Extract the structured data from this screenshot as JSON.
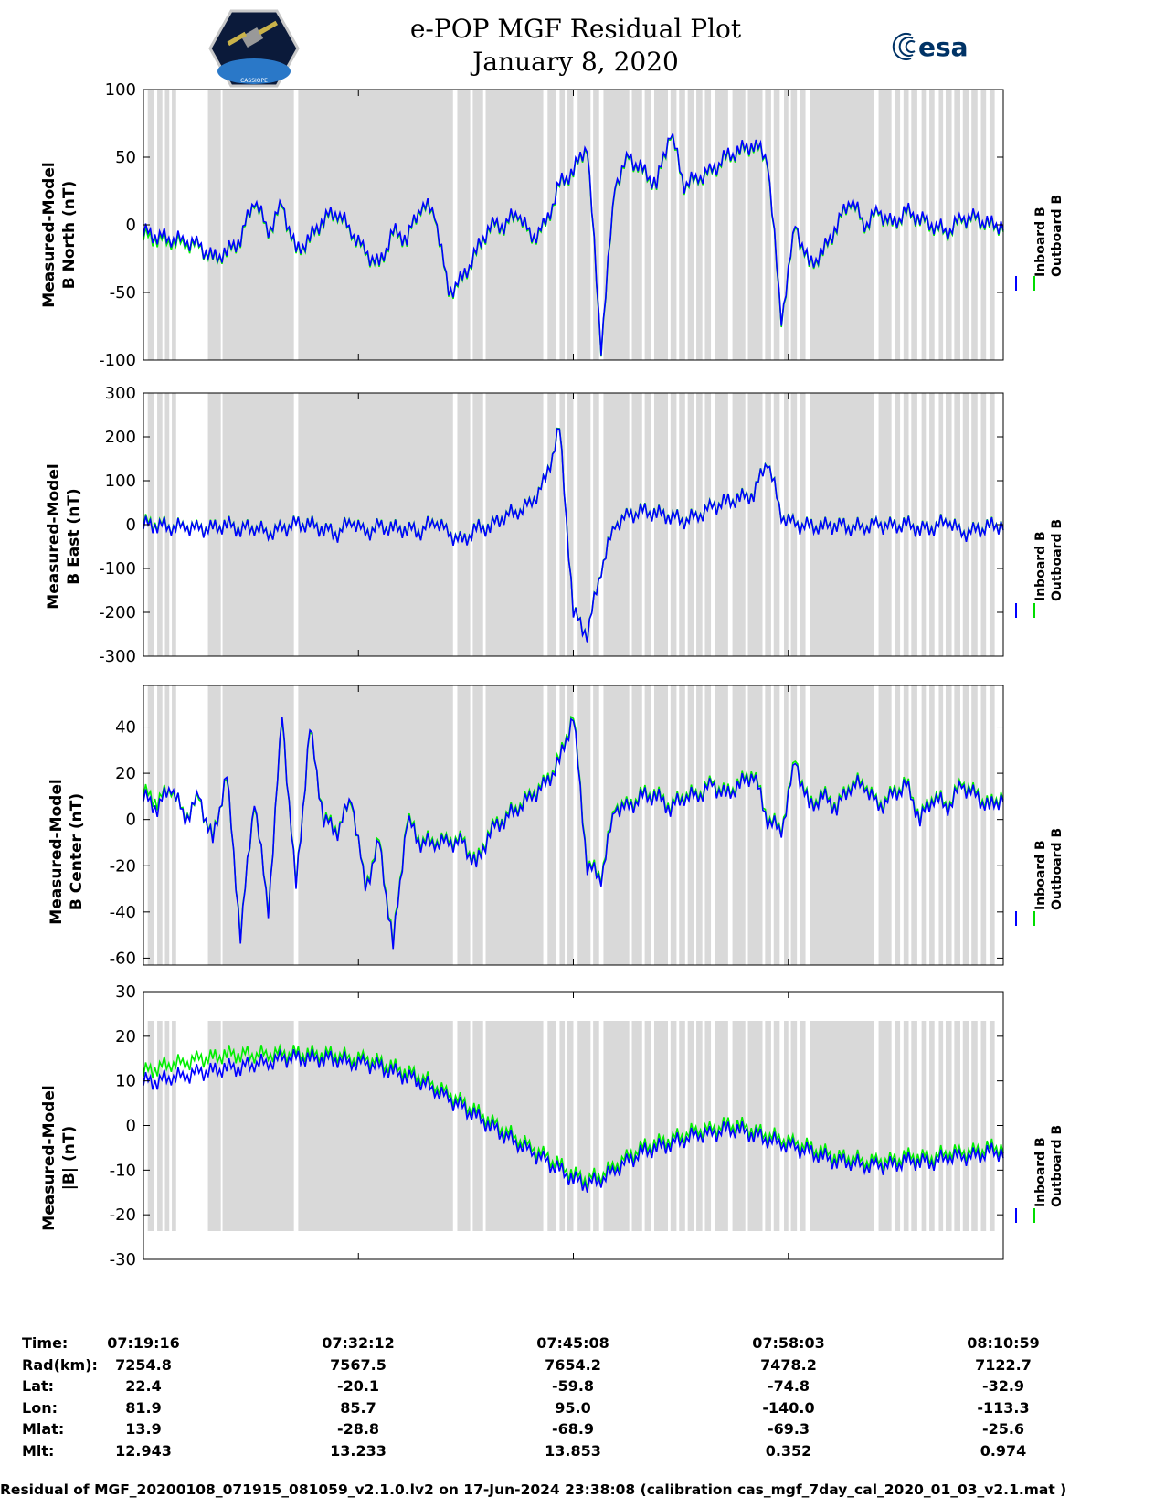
{
  "header": {
    "title_line1": "e-POP MGF Residual Plot",
    "title_line2": "January 8, 2020",
    "logo_left_text": "CASSIOPE",
    "logo_right_text": "esa"
  },
  "legend": {
    "inboard": "Inboard B",
    "outboard": "Outboard B",
    "inboard_color": "#0000ff",
    "outboard_color": "#00dd00"
  },
  "colors": {
    "shade": "#d9d9d9",
    "inboard": "#0000ff",
    "outboard": "#00ee00"
  },
  "chart_data": [
    {
      "type": "line",
      "ylabel_line1": "Measured-Model",
      "ylabel_line2": "B North (nT)",
      "ylim": [
        -100,
        100
      ],
      "yticks": [
        -100,
        -50,
        0,
        50,
        100
      ],
      "series": [
        {
          "name": "Inboard B",
          "values": [
            -5,
            -8,
            -10,
            -12,
            -15,
            -25,
            -20,
            -10,
            20,
            -5,
            15,
            -20,
            -10,
            5,
            10,
            -5,
            -20,
            -30,
            -5,
            -10,
            15,
            10,
            -50,
            -40,
            -20,
            0,
            0,
            10,
            -10,
            0,
            30,
            40,
            60,
            -90,
            30,
            50,
            40,
            30,
            70,
            30,
            35,
            40,
            50,
            55,
            60,
            50,
            -70,
            0,
            -30,
            -20,
            0,
            20,
            0,
            10,
            0,
            10,
            5,
            0,
            -5,
            5,
            5,
            0,
            0
          ]
        },
        {
          "name": "Outboard B",
          "values": [
            -8,
            -10,
            -12,
            -14,
            -16,
            -26,
            -21,
            -11,
            19,
            -6,
            14,
            -21,
            -11,
            4,
            9,
            -6,
            -21,
            -31,
            -6,
            -11,
            14,
            9,
            -51,
            -41,
            -21,
            -1,
            -1,
            9,
            -11,
            -1,
            29,
            39,
            59,
            -91,
            29,
            49,
            39,
            29,
            69,
            29,
            34,
            39,
            49,
            54,
            59,
            49,
            -71,
            -1,
            -31,
            -21,
            -1,
            19,
            -1,
            9,
            -1,
            9,
            4,
            -1,
            -6,
            4,
            4,
            -1,
            -1
          ]
        }
      ]
    },
    {
      "type": "line",
      "ylabel_line1": "Measured-Model",
      "ylabel_line2": "B East (nT)",
      "ylim": [
        -300,
        300
      ],
      "yticks": [
        -300,
        -200,
        -100,
        0,
        100,
        200,
        300
      ],
      "series": [
        {
          "name": "Inboard B",
          "values": [
            0,
            0,
            -5,
            -5,
            -10,
            -10,
            0,
            -10,
            -5,
            -20,
            -10,
            0,
            0,
            -10,
            -20,
            10,
            -20,
            -5,
            -10,
            -10,
            -15,
            10,
            -20,
            -40,
            -10,
            -5,
            20,
            30,
            50,
            100,
            220,
            -200,
            -250,
            -100,
            0,
            20,
            30,
            25,
            20,
            10,
            20,
            40,
            50,
            60,
            70,
            150,
            20,
            0,
            -5,
            -5,
            0,
            -5,
            -5,
            0,
            -5,
            0,
            -10,
            -5,
            10,
            -20,
            -15,
            -5,
            0
          ]
        },
        {
          "name": "Outboard B",
          "values": [
            5,
            3,
            -4,
            -4,
            -9,
            -9,
            1,
            -9,
            -4,
            -19,
            -9,
            1,
            1,
            -9,
            -19,
            11,
            -19,
            -4,
            -9,
            -9,
            -14,
            11,
            -19,
            -39,
            -9,
            -4,
            21,
            31,
            51,
            101,
            221,
            -199,
            -249,
            -99,
            1,
            21,
            31,
            26,
            21,
            11,
            21,
            41,
            51,
            61,
            71,
            151,
            21,
            1,
            -4,
            -4,
            1,
            -4,
            -4,
            1,
            -4,
            1,
            -9,
            -4,
            11,
            -19,
            -14,
            -4,
            1
          ]
        }
      ]
    },
    {
      "type": "line",
      "ylabel_line1": "Measured-Model",
      "ylabel_line2": "B Center (nT)",
      "ylim": [
        -63,
        58
      ],
      "yticks": [
        -60,
        -40,
        -20,
        0,
        20,
        40
      ],
      "series": [
        {
          "name": "Inboard B",
          "values": [
            10,
            5,
            15,
            0,
            10,
            -10,
            20,
            -50,
            10,
            -40,
            45,
            -30,
            40,
            0,
            -5,
            10,
            -30,
            -10,
            -55,
            0,
            -10,
            -10,
            -10,
            -10,
            -20,
            -5,
            0,
            5,
            10,
            15,
            25,
            45,
            -20,
            -25,
            5,
            5,
            10,
            10,
            5,
            10,
            10,
            15,
            10,
            15,
            20,
            0,
            -5,
            25,
            5,
            10,
            5,
            15,
            15,
            5,
            10,
            15,
            0,
            10,
            5,
            15,
            10,
            5,
            10
          ]
        },
        {
          "name": "Outboard B",
          "values": [
            12,
            8,
            14,
            1,
            9,
            -9,
            19,
            -49,
            9,
            -39,
            44,
            -29,
            39,
            1,
            -4,
            9,
            -29,
            -9,
            -54,
            1,
            -9,
            -9,
            -9,
            -9,
            -19,
            -4,
            1,
            6,
            11,
            16,
            26,
            46,
            -19,
            -24,
            6,
            6,
            11,
            11,
            6,
            11,
            11,
            16,
            11,
            16,
            21,
            1,
            -4,
            26,
            6,
            11,
            6,
            16,
            16,
            6,
            11,
            16,
            1,
            11,
            6,
            16,
            11,
            6,
            11
          ]
        }
      ]
    },
    {
      "type": "line",
      "ylabel_line1": "Measured-Model",
      "ylabel_line2": "|B| (nT)",
      "ylim": [
        -30,
        30
      ],
      "yticks": [
        -30,
        -20,
        -10,
        0,
        10,
        20,
        30
      ],
      "series": [
        {
          "name": "Inboard B",
          "values": [
            10,
            10,
            11,
            11,
            12,
            12,
            13,
            13,
            14,
            14,
            15,
            15,
            15,
            15,
            15,
            14,
            14,
            13,
            12,
            11,
            10,
            8,
            6,
            4,
            2,
            0,
            -2,
            -4,
            -6,
            -8,
            -10,
            -12,
            -13,
            -12,
            -10,
            -8,
            -6,
            -5,
            -4,
            -3,
            -2,
            -2,
            -1,
            -1,
            -2,
            -3,
            -4,
            -5,
            -6,
            -7,
            -8,
            -8,
            -9,
            -9,
            -9,
            -8,
            -8,
            -8,
            -7,
            -7,
            -7,
            -6,
            -6
          ]
        },
        {
          "name": "Outboard B",
          "values": [
            12,
            13,
            14,
            14,
            15,
            15,
            16,
            16,
            16,
            16,
            16,
            16,
            16,
            16,
            16,
            15,
            15,
            14,
            13,
            12,
            11,
            9,
            7,
            5,
            3,
            1,
            -1,
            -3,
            -5,
            -7,
            -9,
            -11,
            -12,
            -11,
            -9,
            -7,
            -5,
            -4,
            -3,
            -2,
            -1,
            -1,
            0,
            0,
            -1,
            -2,
            -3,
            -4,
            -5,
            -6,
            -7,
            -7,
            -8,
            -8,
            -8,
            -7,
            -7,
            -7,
            -6,
            -6,
            -6,
            -5,
            -5
          ]
        }
      ]
    }
  ],
  "xaxis": {
    "rows": [
      {
        "label": "Time:",
        "values": [
          "07:19:16",
          "07:32:12",
          "07:45:08",
          "07:58:03",
          "08:10:59"
        ]
      },
      {
        "label": "Rad(km):",
        "values": [
          "7254.8",
          "7567.5",
          "7654.2",
          "7478.2",
          "7122.7"
        ]
      },
      {
        "label": "Lat:",
        "values": [
          "22.4",
          "-20.1",
          "-59.8",
          "-74.8",
          "-32.9"
        ]
      },
      {
        "label": "Lon:",
        "values": [
          "81.9",
          "85.7",
          "95.0",
          "-140.0",
          "-113.3"
        ]
      },
      {
        "label": "Mlat:",
        "values": [
          "13.9",
          "-28.8",
          "-68.9",
          "-69.3",
          "-25.6"
        ]
      },
      {
        "label": "Mlt:",
        "values": [
          "12.943",
          "13.233",
          "13.853",
          "0.352",
          "0.974"
        ]
      }
    ]
  },
  "footer": "Residual of MGF_20200108_071915_081059_v2.1.0.lv2 on 17-Jun-2024 23:38:08 (calibration cas_mgf_7day_cal_2020_01_03_v2.1.mat )"
}
